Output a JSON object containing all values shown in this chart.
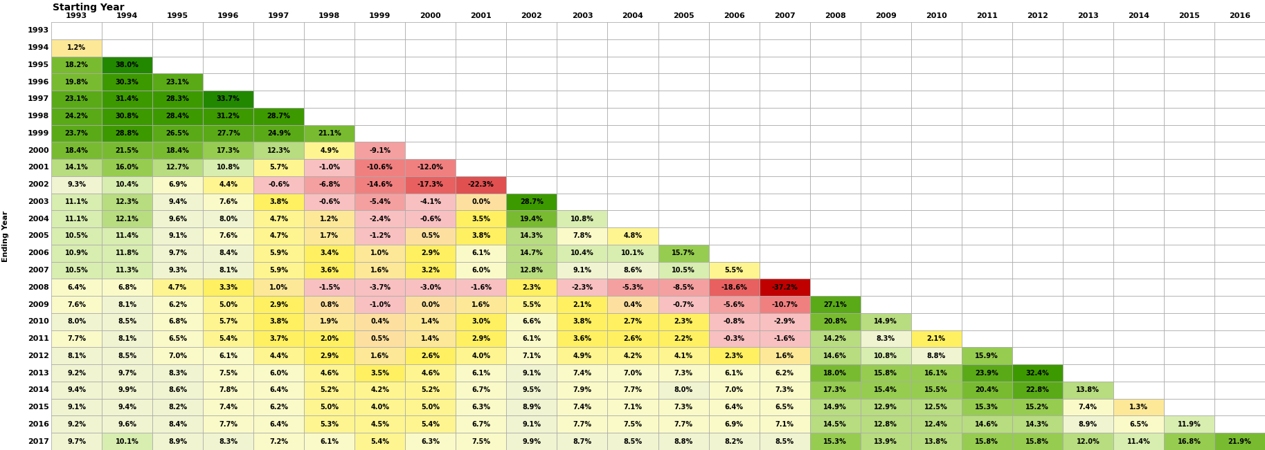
{
  "starting_years": [
    1993,
    1994,
    1995,
    1996,
    1997,
    1998,
    1999,
    2000,
    2001,
    2002,
    2003,
    2004,
    2005,
    2006,
    2007,
    2008,
    2009,
    2010,
    2011,
    2012,
    2013,
    2014,
    2015,
    2016
  ],
  "ending_years": [
    1993,
    1994,
    1995,
    1996,
    1997,
    1998,
    1999,
    2000,
    2001,
    2002,
    2003,
    2004,
    2005,
    2006,
    2007,
    2008,
    2009,
    2010,
    2011,
    2012,
    2013,
    2014,
    2015,
    2016,
    2017
  ],
  "table_data": [
    [
      null,
      null,
      null,
      null,
      null,
      null,
      null,
      null,
      null,
      null,
      null,
      null,
      null,
      null,
      null,
      null,
      null,
      null,
      null,
      null,
      null,
      null,
      null,
      null
    ],
    [
      1.2,
      null,
      null,
      null,
      null,
      null,
      null,
      null,
      null,
      null,
      null,
      null,
      null,
      null,
      null,
      null,
      null,
      null,
      null,
      null,
      null,
      null,
      null,
      null
    ],
    [
      18.2,
      38.0,
      null,
      null,
      null,
      null,
      null,
      null,
      null,
      null,
      null,
      null,
      null,
      null,
      null,
      null,
      null,
      null,
      null,
      null,
      null,
      null,
      null,
      null
    ],
    [
      19.8,
      30.3,
      23.1,
      null,
      null,
      null,
      null,
      null,
      null,
      null,
      null,
      null,
      null,
      null,
      null,
      null,
      null,
      null,
      null,
      null,
      null,
      null,
      null,
      null
    ],
    [
      23.1,
      31.4,
      28.3,
      33.7,
      null,
      null,
      null,
      null,
      null,
      null,
      null,
      null,
      null,
      null,
      null,
      null,
      null,
      null,
      null,
      null,
      null,
      null,
      null,
      null
    ],
    [
      24.2,
      30.8,
      28.4,
      31.2,
      28.7,
      null,
      null,
      null,
      null,
      null,
      null,
      null,
      null,
      null,
      null,
      null,
      null,
      null,
      null,
      null,
      null,
      null,
      null,
      null
    ],
    [
      23.7,
      28.8,
      26.5,
      27.7,
      24.9,
      21.1,
      null,
      null,
      null,
      null,
      null,
      null,
      null,
      null,
      null,
      null,
      null,
      null,
      null,
      null,
      null,
      null,
      null,
      null
    ],
    [
      18.4,
      21.5,
      18.4,
      17.3,
      12.3,
      4.9,
      -9.1,
      null,
      null,
      null,
      null,
      null,
      null,
      null,
      null,
      null,
      null,
      null,
      null,
      null,
      null,
      null,
      null,
      null
    ],
    [
      14.1,
      16.0,
      12.7,
      10.8,
      5.7,
      -1.0,
      -10.6,
      -12.0,
      null,
      null,
      null,
      null,
      null,
      null,
      null,
      null,
      null,
      null,
      null,
      null,
      null,
      null,
      null,
      null
    ],
    [
      9.3,
      10.4,
      6.9,
      4.4,
      -0.6,
      -6.8,
      -14.6,
      -17.3,
      -22.3,
      null,
      null,
      null,
      null,
      null,
      null,
      null,
      null,
      null,
      null,
      null,
      null,
      null,
      null,
      null
    ],
    [
      11.1,
      12.3,
      9.4,
      7.6,
      3.8,
      -0.6,
      -5.4,
      -4.1,
      0.0,
      28.7,
      null,
      null,
      null,
      null,
      null,
      null,
      null,
      null,
      null,
      null,
      null,
      null,
      null,
      null
    ],
    [
      11.1,
      12.1,
      9.6,
      8.0,
      4.7,
      1.2,
      -2.4,
      -0.6,
      3.5,
      19.4,
      10.8,
      null,
      null,
      null,
      null,
      null,
      null,
      null,
      null,
      null,
      null,
      null,
      null,
      null
    ],
    [
      10.5,
      11.4,
      9.1,
      7.6,
      4.7,
      1.7,
      -1.2,
      0.5,
      3.8,
      14.3,
      7.8,
      4.8,
      null,
      null,
      null,
      null,
      null,
      null,
      null,
      null,
      null,
      null,
      null,
      null
    ],
    [
      10.9,
      11.8,
      9.7,
      8.4,
      5.9,
      3.4,
      1.0,
      2.9,
      6.1,
      14.7,
      10.4,
      10.1,
      15.7,
      null,
      null,
      null,
      null,
      null,
      null,
      null,
      null,
      null,
      null,
      null
    ],
    [
      10.5,
      11.3,
      9.3,
      8.1,
      5.9,
      3.6,
      1.6,
      3.2,
      6.0,
      12.8,
      9.1,
      8.6,
      10.5,
      5.5,
      null,
      null,
      null,
      null,
      null,
      null,
      null,
      null,
      null,
      null
    ],
    [
      6.4,
      6.8,
      4.7,
      3.3,
      1.0,
      -1.5,
      -3.7,
      -3.0,
      -1.6,
      2.3,
      -2.3,
      -5.3,
      -8.5,
      -18.6,
      -37.2,
      null,
      null,
      null,
      null,
      null,
      null,
      null,
      null,
      null
    ],
    [
      7.6,
      8.1,
      6.2,
      5.0,
      2.9,
      0.8,
      -1.0,
      0.0,
      1.6,
      5.5,
      2.1,
      0.4,
      -0.7,
      -5.6,
      -10.7,
      27.1,
      null,
      null,
      null,
      null,
      null,
      null,
      null,
      null
    ],
    [
      8.0,
      8.5,
      6.8,
      5.7,
      3.8,
      1.9,
      0.4,
      1.4,
      3.0,
      6.6,
      3.8,
      2.7,
      2.3,
      -0.8,
      -2.9,
      20.8,
      14.9,
      null,
      null,
      null,
      null,
      null,
      null,
      null
    ],
    [
      7.7,
      8.1,
      6.5,
      5.4,
      3.7,
      2.0,
      0.5,
      1.4,
      2.9,
      6.1,
      3.6,
      2.6,
      2.2,
      -0.3,
      -1.6,
      14.2,
      8.3,
      2.1,
      null,
      null,
      null,
      null,
      null,
      null
    ],
    [
      8.1,
      8.5,
      7.0,
      6.1,
      4.4,
      2.9,
      1.6,
      2.6,
      4.0,
      7.1,
      4.9,
      4.2,
      4.1,
      2.3,
      1.6,
      14.6,
      10.8,
      8.8,
      15.9,
      null,
      null,
      null,
      null,
      null
    ],
    [
      9.2,
      9.7,
      8.3,
      7.5,
      6.0,
      4.6,
      3.5,
      4.6,
      6.1,
      9.1,
      7.4,
      7.0,
      7.3,
      6.1,
      6.2,
      18.0,
      15.8,
      16.1,
      23.9,
      32.4,
      null,
      null,
      null,
      null
    ],
    [
      9.4,
      9.9,
      8.6,
      7.8,
      6.4,
      5.2,
      4.2,
      5.2,
      6.7,
      9.5,
      7.9,
      7.7,
      8.0,
      7.0,
      7.3,
      17.3,
      15.4,
      15.5,
      20.4,
      22.8,
      13.8,
      null,
      null,
      null
    ],
    [
      9.1,
      9.4,
      8.2,
      7.4,
      6.2,
      5.0,
      4.0,
      5.0,
      6.3,
      8.9,
      7.4,
      7.1,
      7.3,
      6.4,
      6.5,
      14.9,
      12.9,
      12.5,
      15.3,
      15.2,
      7.4,
      1.3,
      null,
      null
    ],
    [
      9.2,
      9.6,
      8.4,
      7.7,
      6.4,
      5.3,
      4.5,
      5.4,
      6.7,
      9.1,
      7.7,
      7.5,
      7.7,
      6.9,
      7.1,
      14.5,
      12.8,
      12.4,
      14.6,
      14.3,
      8.9,
      6.5,
      11.9,
      null
    ],
    [
      9.7,
      10.1,
      8.9,
      8.3,
      7.2,
      6.1,
      5.4,
      6.3,
      7.5,
      9.9,
      8.7,
      8.5,
      8.8,
      8.2,
      8.5,
      15.3,
      13.9,
      13.8,
      15.8,
      15.8,
      12.0,
      11.4,
      16.8,
      21.9
    ]
  ],
  "title_text": "Starting Year",
  "ending_year_label": "Ending Year",
  "title_fontsize": 10,
  "header_fontsize": 8,
  "cell_fontsize": 7,
  "row_header_fontsize": 8,
  "bg_color": "#ffffff"
}
